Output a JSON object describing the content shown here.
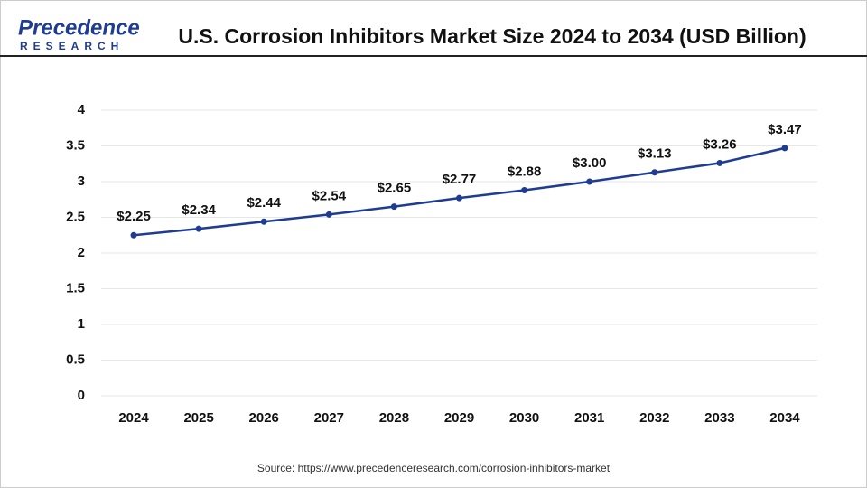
{
  "brand": {
    "name": "Precedence",
    "tagline": "RESEARCH"
  },
  "chart_data": {
    "type": "line",
    "title": "U.S. Corrosion Inhibitors Market Size 2024 to 2034 (USD Billion)",
    "source": "Source: https://www.precedenceresearch.com/corrosion-inhibitors-market",
    "categories": [
      "2024",
      "2025",
      "2026",
      "2027",
      "2028",
      "2029",
      "2030",
      "2031",
      "2032",
      "2033",
      "2034"
    ],
    "values": [
      2.25,
      2.34,
      2.44,
      2.54,
      2.65,
      2.77,
      2.88,
      3.0,
      3.13,
      3.26,
      3.47
    ],
    "value_labels": [
      "$2.25",
      "$2.34",
      "$2.44",
      "$2.54",
      "$2.65",
      "$2.77",
      "$2.88",
      "$3.00",
      "$3.13",
      "$3.26",
      "$3.47"
    ],
    "color": "#1f3c93",
    "ylim": [
      0,
      4
    ],
    "yticks": [
      0,
      0.5,
      1,
      1.5,
      2,
      2.5,
      3,
      3.5,
      4
    ],
    "grid": true
  }
}
